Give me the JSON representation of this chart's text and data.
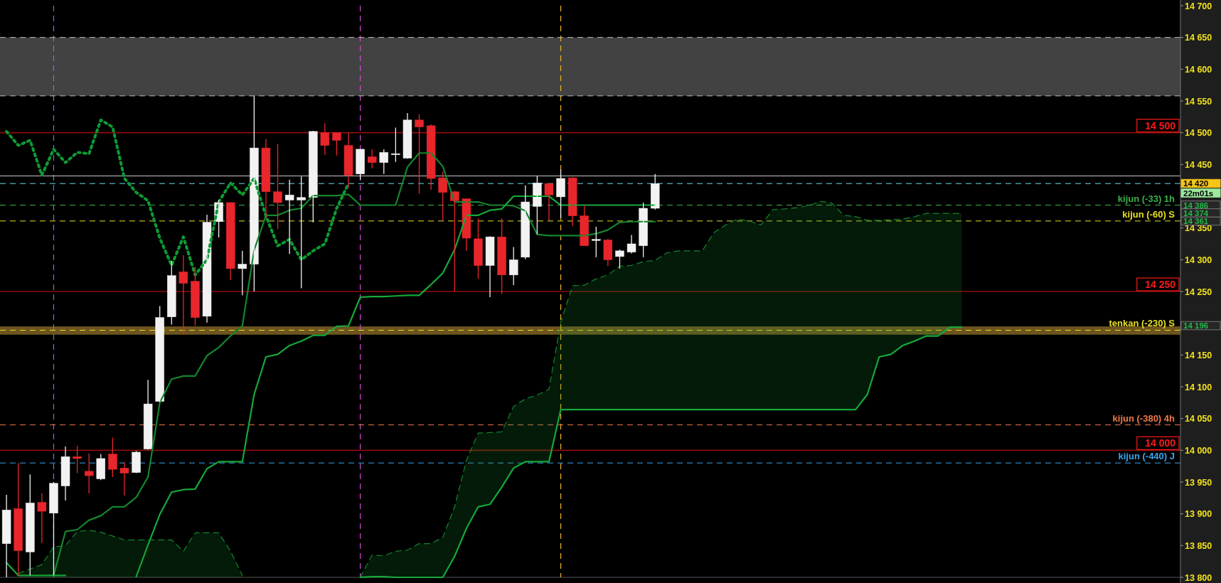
{
  "chart_data": {
    "type": "candlestick",
    "tick_labels": "y",
    "categories": [
      null,
      null,
      null,
      null,
      null,
      null,
      null,
      null,
      null,
      null,
      null,
      null,
      null,
      null,
      null,
      null,
      null,
      null,
      null,
      null,
      null,
      null,
      null,
      null,
      null,
      null,
      null,
      null,
      null,
      null,
      null,
      null,
      null,
      null,
      null,
      null,
      null,
      null,
      null,
      null,
      null,
      null,
      null,
      null,
      null,
      null,
      null,
      null,
      null,
      null,
      null,
      null,
      null,
      null,
      null,
      null,
      null,
      null,
      null,
      null,
      null,
      null,
      null,
      null,
      null,
      null,
      null,
      null,
      null,
      null,
      null,
      null,
      null,
      null,
      null,
      null,
      null,
      null,
      null,
      null,
      null,
      null,
      null,
      null,
      null,
      null,
      null,
      null,
      null,
      null,
      null,
      null,
      null,
      null,
      null,
      null,
      null,
      null,
      null,
      null
    ],
    "ohlc": [
      [
        13853,
        13930,
        13800,
        13906
      ],
      [
        13908,
        13980,
        13803,
        13842
      ],
      [
        13840,
        13962,
        13803,
        13917
      ],
      [
        13918,
        13932,
        13854,
        13904
      ],
      [
        13901,
        13950,
        13803,
        13948
      ],
      [
        13944,
        14006,
        13921,
        13990
      ],
      [
        13990,
        14007,
        13964,
        13987
      ],
      [
        13967,
        13995,
        13932,
        13960
      ],
      [
        13955,
        13994,
        13953,
        13987
      ],
      [
        13994,
        14020,
        13958,
        13970
      ],
      [
        13972,
        13981,
        13929,
        13964
      ],
      [
        13965,
        13999,
        13964,
        13997
      ],
      [
        14002,
        14111,
        14001,
        14073
      ],
      [
        14077,
        14227,
        14076,
        14209
      ],
      [
        14210,
        14298,
        14198,
        14275
      ],
      [
        14281,
        14307,
        14182,
        14263
      ],
      [
        14266,
        14289,
        14196,
        14209
      ],
      [
        14211,
        14371,
        14201,
        14359
      ],
      [
        14360,
        14394,
        14335,
        14390
      ],
      [
        14390,
        14390,
        14268,
        14286
      ],
      [
        14286,
        14314,
        14244,
        14293
      ],
      [
        14293,
        14558,
        14250,
        14476
      ],
      [
        14476,
        14490,
        14365,
        14407
      ],
      [
        14407,
        14482,
        14348,
        14390
      ],
      [
        14394,
        14426,
        14309,
        14402
      ],
      [
        14394,
        14431,
        14255,
        14398
      ],
      [
        14398,
        14503,
        14359,
        14502
      ],
      [
        14500,
        14515,
        14465,
        14480
      ],
      [
        14500,
        14500,
        14464,
        14488
      ],
      [
        14480,
        14500,
        14413,
        14433
      ],
      [
        14435,
        14474,
        14426,
        14474
      ],
      [
        14462,
        14474,
        14444,
        14453
      ],
      [
        14453,
        14474,
        14435,
        14469
      ],
      [
        14467,
        14508,
        14454,
        14467
      ],
      [
        14460,
        14531,
        14459,
        14520
      ],
      [
        14520,
        14529,
        14404,
        14509
      ],
      [
        14511,
        14513,
        14410,
        14428
      ],
      [
        14429,
        14439,
        14362,
        14406
      ],
      [
        14407,
        14408,
        14250,
        14393
      ],
      [
        14396,
        14396,
        14314,
        14334
      ],
      [
        14333,
        14365,
        14270,
        14291
      ],
      [
        14291,
        14337,
        14241,
        14336
      ],
      [
        14336,
        14365,
        14246,
        14276
      ],
      [
        14276,
        14320,
        14260,
        14300
      ],
      [
        14304,
        14417,
        14301,
        14391
      ],
      [
        14384,
        14432,
        14340,
        14421
      ],
      [
        14420,
        14420,
        14362,
        14402
      ],
      [
        14399,
        14442,
        14366,
        14428
      ],
      [
        14429,
        14430,
        14353,
        14369
      ],
      [
        14369,
        14385,
        14322,
        14322
      ],
      [
        14332,
        14352,
        14304,
        14332
      ],
      [
        14331,
        14333,
        14290,
        14300
      ],
      [
        14305,
        14316,
        14286,
        14314
      ],
      [
        14312,
        14339,
        14310,
        14325
      ],
      [
        14322,
        14390,
        14304,
        14381
      ],
      [
        14381,
        14435,
        14379,
        14420
      ],
      null,
      null,
      null,
      null,
      null,
      null,
      null,
      null,
      null,
      null,
      null,
      null,
      null,
      null,
      null,
      null,
      null,
      null,
      null,
      null,
      null,
      null,
      null,
      null,
      null,
      null,
      null,
      null,
      null,
      null,
      null,
      null,
      null,
      null,
      null,
      null,
      null,
      null,
      null,
      null,
      null,
      null,
      null,
      null
    ],
    "colors": [
      "#f2f2f2",
      "#e8262b",
      "#f2f2f2",
      "#e8262b",
      "#f2f2f2",
      "#f2f2f2",
      "#e8262b",
      "#e8262b",
      "#f2f2f2",
      "#e8262b",
      "#e8262b",
      "#f2f2f2",
      "#f2f2f2",
      "#f2f2f2",
      "#f2f2f2",
      "#e8262b",
      "#e8262b",
      "#f2f2f2",
      "#f2f2f2",
      "#e8262b",
      "#f2f2f2",
      "#f2f2f2",
      "#e8262b",
      "#e8262b",
      "#f2f2f2",
      "#f2f2f2",
      "#f2f2f2",
      "#e8262b",
      "#e8262b",
      "#e8262b",
      "#f2f2f2",
      "#e8262b",
      "#f2f2f2",
      "#f2f2f2",
      "#f2f2f2",
      "#e8262b",
      "#e8262b",
      "#e8262b",
      "#e8262b",
      "#e8262b",
      "#e8262b",
      "#f2f2f2",
      "#e8262b",
      "#f2f2f2",
      "#f2f2f2",
      "#f2f2f2",
      "#e8262b",
      "#f2f2f2",
      "#e8262b",
      "#e8262b",
      "#f2f2f2",
      "#e8262b",
      "#f2f2f2",
      "#f2f2f2",
      "#f2f2f2",
      "#f2f2f2",
      null,
      null,
      null,
      null,
      null,
      null,
      null,
      null,
      null,
      null,
      null,
      null,
      null,
      null,
      null,
      null,
      null,
      null,
      null,
      null,
      null,
      null,
      null,
      null,
      null,
      null,
      null,
      null,
      null,
      null,
      null,
      null,
      null,
      null,
      null,
      null,
      null,
      null,
      null,
      null,
      null,
      null,
      null,
      null
    ],
    "series": [
      {
        "type": "line",
        "color": "#0e9a34",
        "line_style": "dotted",
        "values": [
          14502,
          14480,
          14488,
          14433,
          14474,
          14453,
          14469,
          14467,
          14520,
          14509,
          14428,
          14406,
          14393,
          14334,
          14291,
          14336,
          14276,
          14300,
          14391,
          14421,
          14402,
          14428,
          14369,
          14322,
          14332,
          14300,
          14314,
          14325,
          14381,
          14420,
          null,
          null,
          null,
          null,
          null,
          null,
          null,
          null,
          null,
          null,
          null,
          null,
          null,
          null,
          null,
          null,
          null,
          null,
          null,
          null,
          null,
          null,
          null,
          null,
          null,
          null,
          null,
          null,
          null,
          null,
          null,
          null,
          null,
          null,
          null,
          null,
          null,
          null,
          null,
          null,
          null,
          null,
          null,
          null,
          null,
          null,
          null,
          null,
          null,
          null,
          null,
          null,
          null,
          null,
          null,
          null,
          null,
          null,
          null,
          null,
          null,
          null,
          null,
          null,
          null,
          null,
          null,
          null,
          null,
          null
        ]
      },
      {
        "type": "line",
        "color": "#14862e",
        "line_style": "solid",
        "values": [
          null,
          null,
          null,
          null,
          13803,
          13872,
          13875,
          13890,
          13897,
          13911,
          13911,
          13926,
          13958,
          14075,
          14112,
          14117,
          14117,
          14149,
          14162,
          14180,
          14196,
          14315,
          14370,
          14370,
          14378,
          14381,
          14401,
          14401,
          14401,
          14403,
          14386,
          14386,
          14386,
          14386,
          14446,
          14468,
          14468,
          14447,
          14391,
          14391,
          14391,
          14386,
          14386,
          14385,
          14377,
          14340,
          14338,
          14338,
          14338,
          14338,
          14341,
          14347,
          14359,
          14360,
          14360,
          14360,
          null,
          null,
          null,
          null,
          null,
          null,
          null,
          null,
          null,
          null,
          null,
          null,
          null,
          null,
          null,
          null,
          null,
          null,
          null,
          null,
          null,
          null,
          null,
          null,
          null,
          null,
          null,
          null,
          null,
          null,
          null,
          null,
          null,
          null,
          null,
          null,
          null,
          null,
          null,
          null,
          null,
          null,
          null,
          null
        ]
      },
      {
        "type": "line",
        "color": "#16a83a",
        "line_style": "solid",
        "values": [
          13823,
          13803,
          13803,
          13803,
          13803,
          13803,
          null,
          null,
          null,
          null,
          null,
          13801,
          13851,
          13899,
          13934,
          13938,
          13939,
          13971,
          13982,
          13982,
          13982,
          14088,
          14147,
          14151,
          14165,
          14172,
          14181,
          14181,
          14195,
          14196,
          14241,
          14242,
          14242,
          14243,
          14244,
          14244,
          14261,
          14279,
          14316,
          14370,
          14370,
          14378,
          14380,
          14400,
          14400,
          14400,
          14400,
          14386,
          14386,
          14386,
          14386,
          14386,
          14386,
          14386,
          14386,
          14386,
          null,
          null,
          null,
          null,
          null,
          null,
          null,
          null,
          null,
          null,
          null,
          null,
          null,
          null,
          null,
          null,
          null,
          null,
          null,
          null,
          null,
          null,
          null,
          null,
          null,
          null,
          null,
          null,
          null,
          null,
          null,
          null,
          null,
          null,
          null,
          null,
          null,
          null,
          null,
          null,
          null,
          null,
          null,
          null
        ]
      },
      {
        "type": "line",
        "color": "#14862e",
        "line_style": "dashed",
        "values": [
          null,
          13806,
          13813,
          13820,
          13848,
          13850,
          13872,
          13874,
          13871,
          13865,
          13859,
          13859,
          13859,
          13859,
          13859,
          13841,
          13870,
          13870,
          13870,
          13841,
          13803,
          null,
          null,
          null,
          null,
          null,
          null,
          null,
          null,
          null,
          13800,
          13835,
          13834,
          13841,
          13843,
          13853,
          13853,
          13863,
          13911,
          13984,
          14027,
          14028,
          14029,
          14069,
          14081,
          14087,
          14096,
          14202,
          14259,
          14260,
          14270,
          14276,
          14290,
          14291,
          14297,
          14299,
          14311,
          14314,
          14314,
          14314,
          14343,
          14355,
          14364,
          14361,
          14355,
          14379,
          14380,
          14382,
          14385,
          14392,
          14389,
          14370,
          14368,
          14362,
          14362,
          14363,
          14364,
          14368,
          14373,
          14373,
          14373,
          14373,
          null,
          null,
          null,
          null,
          null,
          null,
          null,
          null,
          null,
          null,
          null,
          null,
          null,
          null,
          null,
          null,
          null,
          null
        ],
        "lower": [
          null,
          13800,
          13800,
          13800,
          13800,
          13800,
          13800,
          13800,
          13800,
          13800,
          13800,
          13800,
          13800,
          13800,
          13800,
          13800,
          13800,
          13800,
          13800,
          13800,
          13800,
          null,
          null,
          null,
          null,
          null,
          null,
          null,
          null,
          null,
          13800,
          13801,
          13801,
          13800,
          13800,
          13800,
          13800,
          13800,
          13833,
          13877,
          13911,
          13915,
          13942,
          13972,
          13982,
          13982,
          13982,
          14064,
          14064,
          14064,
          14064,
          14064,
          14064,
          14064,
          14064,
          14064,
          14064,
          14064,
          14064,
          14064,
          14064,
          14064,
          14064,
          14064,
          14064,
          14064,
          14064,
          14064,
          14064,
          14064,
          14064,
          14064,
          14064,
          14088,
          14147,
          14151,
          14165,
          14172,
          14180,
          14180,
          14194,
          14194,
          null,
          null,
          null,
          null,
          null,
          null,
          null,
          null,
          null,
          null,
          null,
          null,
          null,
          null,
          null,
          null,
          null,
          null
        ],
        "upper": [
          null,
          13806,
          13813,
          13820,
          13848,
          13850,
          13872,
          13874,
          13871,
          13865,
          13859,
          13859,
          13859,
          13859,
          13859,
          13841,
          13870,
          13870,
          13870,
          13841,
          13803,
          null,
          null,
          null,
          null,
          null,
          null,
          null,
          null,
          null,
          13800,
          13835,
          13834,
          13841,
          13843,
          13853,
          13853,
          13863,
          13911,
          13984,
          14027,
          14028,
          14029,
          14069,
          14081,
          14087,
          14096,
          14202,
          14259,
          14260,
          14270,
          14276,
          14290,
          14291,
          14297,
          14299,
          14311,
          14314,
          14314,
          14314,
          14343,
          14355,
          14364,
          14361,
          14355,
          14379,
          14380,
          14382,
          14385,
          14392,
          14389,
          14370,
          14368,
          14362,
          14362,
          14363,
          14364,
          14368,
          14373,
          14373,
          14373,
          14373,
          null,
          null,
          null,
          null,
          null,
          null,
          null,
          null,
          null,
          null,
          null,
          null,
          null,
          null,
          null,
          null,
          null,
          null
        ]
      },
      {
        "type": "line",
        "color": "#16a83a",
        "line_style": "solid",
        "values": [
          null,
          null,
          null,
          null,
          null,
          null,
          null,
          null,
          null,
          null,
          null,
          null,
          null,
          null,
          null,
          null,
          null,
          null,
          null,
          null,
          null,
          null,
          null,
          null,
          null,
          null,
          null,
          null,
          null,
          null,
          13800,
          13801,
          13801,
          13800,
          13800,
          13800,
          13800,
          13800,
          13833,
          13877,
          13911,
          13915,
          13942,
          13972,
          13982,
          13982,
          13982,
          14064,
          14064,
          14064,
          14064,
          14064,
          14064,
          14064,
          14064,
          14064,
          14064,
          14064,
          14064,
          14064,
          14064,
          14064,
          14064,
          14064,
          14064,
          14064,
          14064,
          14064,
          14064,
          14064,
          14064,
          14064,
          14064,
          14088,
          14147,
          14151,
          14165,
          14172,
          14180,
          14180,
          14194,
          14194,
          null,
          null,
          null,
          null,
          null,
          null,
          null,
          null,
          null,
          null,
          null,
          null,
          null,
          null,
          null,
          null,
          null,
          null
        ]
      }
    ],
    "ylim": [
      13800,
      14700
    ],
    "yticks": [
      13800,
      13850,
      13900,
      13950,
      14000,
      14050,
      14100,
      14150,
      {
        "value": 14200,
        "label": null
      },
      14250,
      14300,
      14350,
      {
        "value": 14400,
        "label": null
      },
      14450,
      14500,
      14550,
      14600,
      14650,
      14700
    ],
    "bands": [
      {
        "axis": "y",
        "from": 14558,
        "to": 14650,
        "color": "#424242"
      },
      {
        "axis": "y",
        "from": 14182,
        "to": 14195,
        "color": "#6e5520"
      }
    ],
    "ref_lines": [
      {
        "axis": "y",
        "value": 14650,
        "color": "#bdbdbd",
        "line_style": "dashed"
      },
      {
        "axis": "y",
        "value": 14558,
        "color": "#bdbdbd",
        "line_style": "dashed"
      },
      {
        "axis": "y",
        "value": 14500,
        "label": "14 500",
        "color": "#ff1a1a",
        "line_style": "solid"
      },
      {
        "axis": "y",
        "value": 14432,
        "color": "#c8c8c8",
        "line_style": "solid"
      },
      {
        "axis": "y",
        "value": 14420,
        "color": "#6fe0f0",
        "line_style": "dashed"
      },
      {
        "axis": "y",
        "value": 14386,
        "label": "kijun (-33) 1h",
        "color": "#3cb04a",
        "line_style": "dashed"
      },
      {
        "axis": "y",
        "value": 14361,
        "label": "kijun (-60) S",
        "color": "#e8e020",
        "line_style": "dashed"
      },
      {
        "axis": "y",
        "value": 14250,
        "label": "14 250",
        "color": "#ff1a1a",
        "line_style": "solid"
      },
      {
        "axis": "y",
        "value": 14189,
        "label": "tenkan (-230) S",
        "color": "#e8e020",
        "line_style": "dashed"
      },
      {
        "axis": "y",
        "value": 14040,
        "label": "kijun (-380) 4h",
        "color": "#f07a48",
        "line_style": "dashed"
      },
      {
        "axis": "y",
        "value": 14000,
        "label": "14 000",
        "color": "#ff1a1a",
        "line_style": "solid"
      },
      {
        "axis": "y",
        "value": 13980,
        "label": "kijun (-440) J",
        "color": "#3aa6ee",
        "line_style": "dashed"
      }
    ],
    "annotations": [
      "14 420",
      "22m01s",
      "14 386",
      "14 374",
      "14 361",
      "14 196"
    ]
  }
}
